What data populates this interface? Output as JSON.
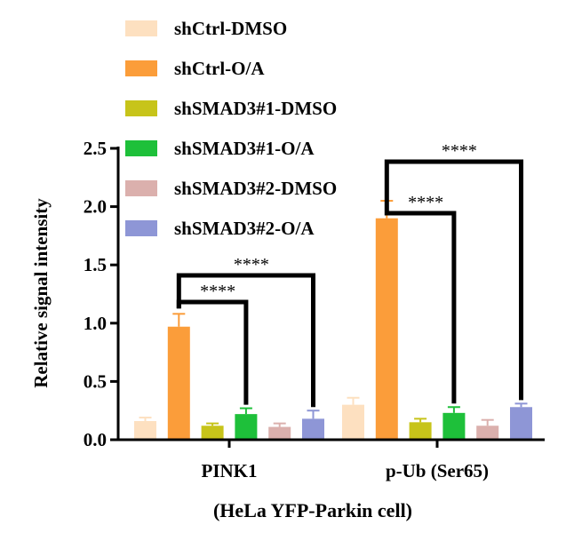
{
  "chart_data": {
    "type": "bar",
    "ylabel": "Relative signal intensity",
    "xlabel": "(HeLa YFP-Parkin cell)",
    "ylim": [
      0,
      2.5
    ],
    "yticks": [
      "0.0",
      "0.5",
      "1.0",
      "1.5",
      "2.0",
      "2.5"
    ],
    "categories": [
      "PINK1",
      "p-Ub (Ser65)"
    ],
    "legend_position": "top",
    "series": [
      {
        "name": "shCtrl-DMSO",
        "color": "#fde0c0",
        "values": [
          0.16,
          0.3
        ],
        "errors": [
          0.03,
          0.06
        ]
      },
      {
        "name": "shCtrl-O/A",
        "color": "#fb9d3a",
        "values": [
          0.97,
          1.9
        ],
        "errors": [
          0.11,
          0.15
        ]
      },
      {
        "name": "shSMAD3#1-DMSO",
        "color": "#c7c41a",
        "values": [
          0.12,
          0.15
        ],
        "errors": [
          0.02,
          0.03
        ]
      },
      {
        "name": "shSMAD3#1-O/A",
        "color": "#1ec03a",
        "values": [
          0.22,
          0.23
        ],
        "errors": [
          0.05,
          0.05
        ]
      },
      {
        "name": "shSMAD3#2-DMSO",
        "color": "#dbb0ad",
        "values": [
          0.11,
          0.12
        ],
        "errors": [
          0.03,
          0.05
        ]
      },
      {
        "name": "shSMAD3#2-O/A",
        "color": "#8e96d6",
        "values": [
          0.18,
          0.28
        ],
        "errors": [
          0.07,
          0.03
        ]
      }
    ],
    "significance": [
      {
        "category": "PINK1",
        "from": 1,
        "to": 3,
        "label": "****"
      },
      {
        "category": "PINK1",
        "from": 1,
        "to": 5,
        "label": "****"
      },
      {
        "category": "p-Ub (Ser65)",
        "from": 1,
        "to": 3,
        "label": "****"
      },
      {
        "category": "p-Ub (Ser65)",
        "from": 1,
        "to": 5,
        "label": "****"
      }
    ]
  }
}
